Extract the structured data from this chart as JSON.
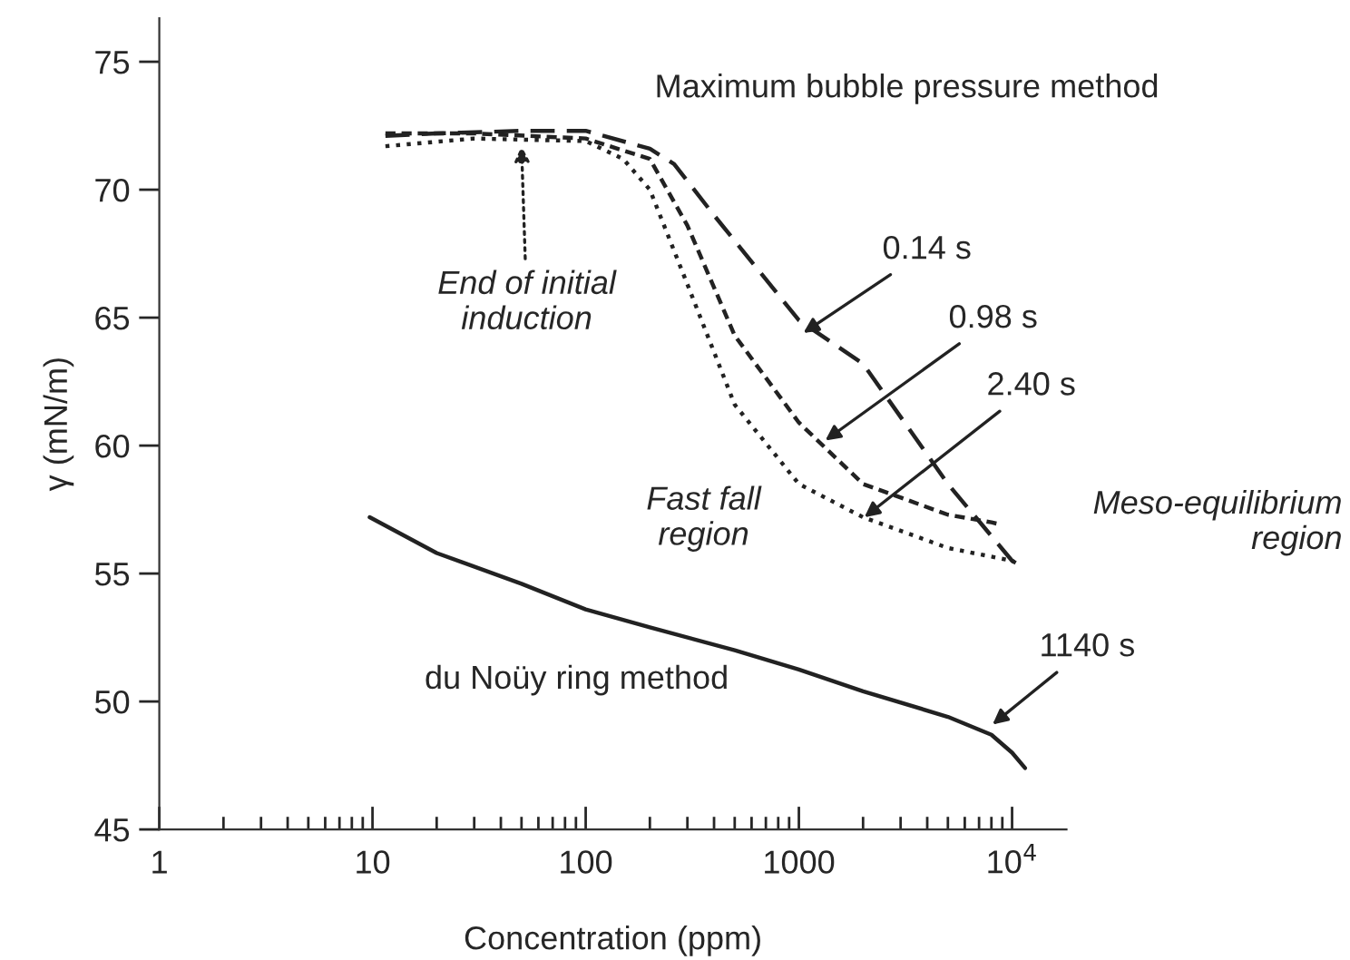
{
  "chart_data": {
    "type": "line",
    "xlabel": "Concentration (ppm)",
    "ylabel": "γ (mN/m)",
    "log": "x",
    "xlim": [
      1,
      18000
    ],
    "ylim": [
      45,
      76.7
    ],
    "xticks": [
      1,
      10,
      100,
      1000,
      {
        "value": 10000,
        "label": "10$^{4}$"
      }
    ],
    "yticks": [
      45,
      50,
      55,
      60,
      65,
      70,
      75
    ],
    "grid": false,
    "legend": false,
    "marker": "none",
    "series": [
      {
        "color": "#222222",
        "line_style": "dashed",
        "x": [
          11.5,
          20,
          50,
          100,
          200,
          260,
          400,
          1000,
          2000,
          5000,
          10000,
          11000
        ],
        "values": [
          72.1,
          72.2,
          72.3,
          72.3,
          71.6,
          71.0,
          69.0,
          64.9,
          63.2,
          58.5,
          55.5,
          55.3
        ]
      },
      {
        "color": "#222222",
        "line_style": "dashed",
        "x": [
          11.5,
          30,
          100,
          200,
          300,
          500,
          1000,
          2000,
          5000,
          8000,
          9000
        ],
        "values": [
          72.2,
          72.2,
          72.0,
          71.2,
          68.6,
          64.3,
          60.9,
          58.5,
          57.3,
          57.0,
          56.9
        ]
      },
      {
        "color": "#222222",
        "line_style": "dotted",
        "x": [
          11.5,
          30,
          100,
          150,
          200,
          300,
          500,
          1000,
          2000,
          5000,
          10000,
          11000
        ],
        "values": [
          71.7,
          72.0,
          71.9,
          71.2,
          70.0,
          66.3,
          61.6,
          58.5,
          57.2,
          56.0,
          55.5,
          55.3
        ]
      },
      {
        "color": "#222222",
        "line_style": "solid",
        "x": [
          9.7,
          20,
          50,
          100,
          200,
          500,
          1000,
          2000,
          5000,
          8000,
          10000,
          11500
        ],
        "values": [
          57.2,
          55.8,
          54.6,
          53.6,
          52.9,
          52.0,
          51.25,
          50.4,
          49.4,
          48.7,
          48.0,
          47.4
        ]
      }
    ],
    "annotations": [
      "Maximum bubble pressure method",
      {
        "text": "End of initial\ninduction",
        "x": 50,
        "y": 71.7
      },
      {
        "text": "0.14 s",
        "x": 1050,
        "y": 64.4
      },
      {
        "text": "0.98 s",
        "x": 1330,
        "y": 60.2
      },
      {
        "text": "2.40 s",
        "x": 2030,
        "y": 57.2
      },
      "Fast fall\nregion",
      "Meso-equilibrium\nregion",
      "du Noüy ring method",
      {
        "text": "1140 s",
        "x": 8100,
        "y": 49.1
      }
    ]
  }
}
